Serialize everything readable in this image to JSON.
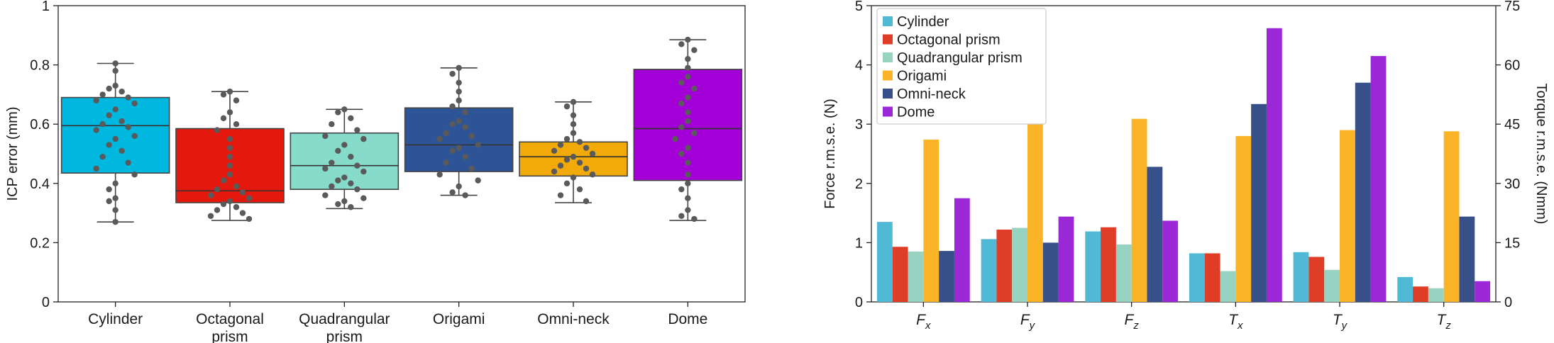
{
  "colors": {
    "cylinder": "#00b7e0",
    "octagonal": "#e4180d",
    "quadrangular": "#86dbcb",
    "origami": "#2d5496",
    "omni": "#f2aa0a",
    "dome": "#a300d8",
    "bar_cylinder": "#50bad6",
    "bar_octagonal": "#e03d26",
    "bar_quadrangular": "#98d2c0",
    "bar_origami": "#fbb427",
    "bar_omni": "#38508a",
    "bar_dome": "#9b28d6",
    "points": "#5a5a5a"
  },
  "chart_data": [
    {
      "type": "box",
      "ylabel": "ICP error (mm)",
      "ylim": [
        0,
        1
      ],
      "yticks": [
        "0",
        "0.2",
        "0.4",
        "0.6",
        "0.8",
        "1"
      ],
      "categories": [
        {
          "line1": "Cylinder",
          "line2": ""
        },
        {
          "line1": "Octagonal",
          "line2": "prism"
        },
        {
          "line1": "Quadrangular",
          "line2": "prism"
        },
        {
          "line1": "Origami",
          "line2": ""
        },
        {
          "line1": "Omni-neck",
          "line2": ""
        },
        {
          "line1": "Dome",
          "line2": ""
        }
      ],
      "boxes": [
        {
          "min": 0.27,
          "q1": 0.435,
          "median": 0.595,
          "q3": 0.69,
          "max": 0.805,
          "color_key": "cylinder",
          "points": [
            0.805,
            0.78,
            0.73,
            0.72,
            0.71,
            0.7,
            0.69,
            0.68,
            0.67,
            0.65,
            0.63,
            0.61,
            0.6,
            0.59,
            0.58,
            0.56,
            0.55,
            0.53,
            0.51,
            0.49,
            0.47,
            0.45,
            0.43,
            0.4,
            0.38,
            0.35,
            0.34,
            0.31,
            0.27
          ]
        },
        {
          "min": 0.275,
          "q1": 0.335,
          "median": 0.375,
          "q3": 0.585,
          "max": 0.71,
          "color_key": "octagonal",
          "points": [
            0.71,
            0.7,
            0.68,
            0.64,
            0.62,
            0.6,
            0.58,
            0.55,
            0.52,
            0.49,
            0.46,
            0.43,
            0.41,
            0.39,
            0.38,
            0.37,
            0.36,
            0.35,
            0.34,
            0.33,
            0.32,
            0.31,
            0.3,
            0.29,
            0.28
          ]
        },
        {
          "min": 0.315,
          "q1": 0.38,
          "median": 0.46,
          "q3": 0.57,
          "max": 0.65,
          "color_key": "quadrangular",
          "points": [
            0.65,
            0.64,
            0.62,
            0.6,
            0.58,
            0.56,
            0.55,
            0.53,
            0.51,
            0.49,
            0.47,
            0.46,
            0.45,
            0.44,
            0.42,
            0.41,
            0.4,
            0.39,
            0.38,
            0.36,
            0.35,
            0.34,
            0.33,
            0.32
          ]
        },
        {
          "min": 0.36,
          "q1": 0.44,
          "median": 0.53,
          "q3": 0.655,
          "max": 0.79,
          "color_key": "origami",
          "points": [
            0.79,
            0.77,
            0.74,
            0.71,
            0.68,
            0.66,
            0.64,
            0.61,
            0.6,
            0.59,
            0.57,
            0.56,
            0.55,
            0.53,
            0.52,
            0.51,
            0.49,
            0.47,
            0.45,
            0.43,
            0.41,
            0.39,
            0.37,
            0.36
          ]
        },
        {
          "min": 0.335,
          "q1": 0.425,
          "median": 0.49,
          "q3": 0.54,
          "max": 0.675,
          "color_key": "omni",
          "points": [
            0.675,
            0.66,
            0.63,
            0.6,
            0.57,
            0.55,
            0.54,
            0.53,
            0.52,
            0.51,
            0.5,
            0.49,
            0.48,
            0.47,
            0.46,
            0.45,
            0.44,
            0.43,
            0.42,
            0.4,
            0.38,
            0.36,
            0.34
          ]
        },
        {
          "min": 0.275,
          "q1": 0.41,
          "median": 0.585,
          "q3": 0.785,
          "max": 0.885,
          "color_key": "dome",
          "points": [
            0.885,
            0.87,
            0.85,
            0.82,
            0.79,
            0.76,
            0.74,
            0.72,
            0.69,
            0.67,
            0.64,
            0.61,
            0.59,
            0.57,
            0.55,
            0.52,
            0.5,
            0.47,
            0.43,
            0.4,
            0.38,
            0.35,
            0.31,
            0.29,
            0.28
          ]
        }
      ]
    },
    {
      "type": "bar",
      "ylabel": "Force r.m.s.e. (N)",
      "y2label": "Torque r.m.s.e. (Nmm)",
      "ylim": [
        0,
        5
      ],
      "yticks": [
        "0",
        "1",
        "2",
        "3",
        "4",
        "5"
      ],
      "y2lim": [
        0,
        75
      ],
      "y2ticks": [
        "0",
        "15",
        "30",
        "45",
        "60",
        "75"
      ],
      "legend_position": "top-left",
      "categories": [
        {
          "base": "F",
          "sub": "x"
        },
        {
          "base": "F",
          "sub": "y"
        },
        {
          "base": "F",
          "sub": "z"
        },
        {
          "base": "T",
          "sub": "x"
        },
        {
          "base": "T",
          "sub": "y"
        },
        {
          "base": "T",
          "sub": "z"
        }
      ],
      "series": [
        {
          "name": "Cylinder",
          "color_key": "bar_cylinder",
          "values": [
            1.35,
            1.06,
            1.19,
            0.82,
            0.84,
            0.42
          ]
        },
        {
          "name": "Octagonal prism",
          "color_key": "bar_octagonal",
          "values": [
            0.93,
            1.22,
            1.26,
            0.82,
            0.76,
            0.26
          ]
        },
        {
          "name": "Quadrangular prism",
          "color_key": "bar_quadrangular",
          "values": [
            0.85,
            1.25,
            0.97,
            0.52,
            0.54,
            0.23
          ]
        },
        {
          "name": "Origami",
          "color_key": "bar_origami",
          "values": [
            2.74,
            4.7,
            3.09,
            2.8,
            2.9,
            2.88
          ]
        },
        {
          "name": "Omni-neck",
          "color_key": "bar_omni",
          "values": [
            0.86,
            1.0,
            2.28,
            3.34,
            3.7,
            1.44
          ]
        },
        {
          "name": "Dome",
          "color_key": "bar_dome",
          "values": [
            1.75,
            1.44,
            1.37,
            4.62,
            4.15,
            0.35
          ]
        }
      ]
    }
  ]
}
